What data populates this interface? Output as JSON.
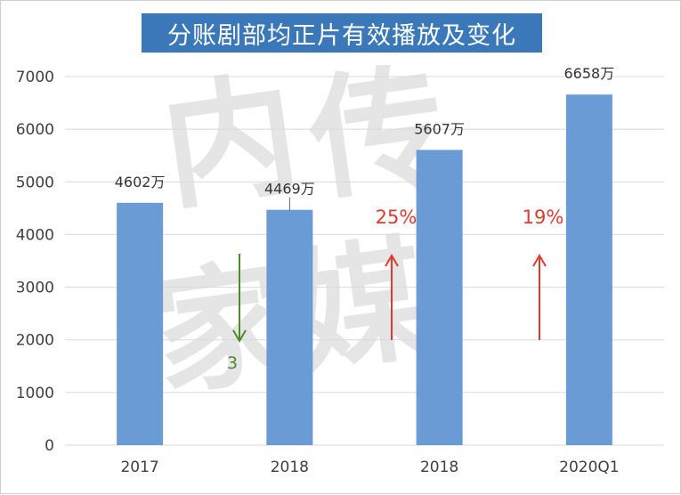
{
  "chart_data": {
    "type": "bar",
    "title": "分账剧部均正片有效播放及变化",
    "categories": [
      "2017",
      "2018",
      "2018",
      "2020Q1"
    ],
    "values": [
      4602,
      4469,
      5607,
      6658
    ],
    "value_labels": [
      "4602万",
      "4469万",
      "5607万",
      "6658万"
    ],
    "ylim": [
      0,
      7000
    ],
    "yticks": [
      0,
      1000,
      2000,
      3000,
      4000,
      5000,
      6000,
      7000
    ],
    "xlabel": "",
    "ylabel": "",
    "grid": true,
    "legend": "none",
    "annotations": [
      {
        "text": "3",
        "direction": "down",
        "color": "#4f8a2c"
      },
      {
        "text": "25%",
        "direction": "up",
        "color": "#e03a2f"
      },
      {
        "text": "19%",
        "direction": "up",
        "color": "#e03a2f"
      }
    ],
    "watermark": [
      "内",
      "传",
      "媒",
      "家"
    ]
  },
  "colors": {
    "bar": "#6a9bd4",
    "title_bg": "#3a78ba",
    "grid": "#d9d9d9",
    "axis_text": "#404040",
    "down_arrow": "#4f8a2c",
    "up_arrow": "#e03a2f"
  }
}
